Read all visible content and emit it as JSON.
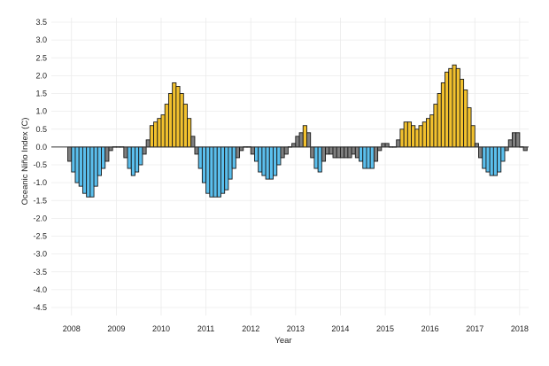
{
  "chart_data": {
    "type": "bar",
    "xlabel": "Year",
    "ylabel": "Oceanic Niño Index (C)",
    "ylim": [
      -4.5,
      3.5
    ],
    "xlim": [
      2007.55,
      2018.2
    ],
    "grid": true,
    "legend": "none",
    "y_ticks": [
      "3.5",
      "3.0",
      "2.5",
      "2.0",
      "1.5",
      "1.0",
      "0.5",
      "0.0",
      "-0.5",
      "-1.0",
      "-1.5",
      "-2.0",
      "-2.5",
      "-3.0",
      "-3.5",
      "-4.0",
      "-4.5"
    ],
    "x_ticks": [
      "2008",
      "2009",
      "2010",
      "2011",
      "2012",
      "2013",
      "2014",
      "2015",
      "2016",
      "2017",
      "2018"
    ],
    "colors": {
      "el_nino": "#f2c12e",
      "la_nina": "#5bbfed",
      "neutral": "#7f7f7f"
    },
    "start_month": "2007-12",
    "values": [
      -0.4,
      -0.7,
      -1.0,
      -1.1,
      -1.3,
      -1.4,
      -1.4,
      -1.1,
      -0.8,
      -0.6,
      -0.4,
      -0.1,
      0.0,
      0.0,
      0.0,
      -0.3,
      -0.6,
      -0.8,
      -0.7,
      -0.5,
      -0.2,
      0.2,
      0.6,
      0.7,
      0.8,
      0.9,
      1.2,
      1.5,
      1.8,
      1.7,
      1.5,
      1.2,
      0.8,
      0.3,
      -0.2,
      -0.6,
      -1.0,
      -1.3,
      -1.4,
      -1.4,
      -1.4,
      -1.3,
      -1.2,
      -0.9,
      -0.6,
      -0.3,
      -0.1,
      0.0,
      0.0,
      -0.2,
      -0.4,
      -0.7,
      -0.8,
      -0.9,
      -0.9,
      -0.8,
      -0.5,
      -0.3,
      -0.2,
      0.0,
      0.1,
      0.3,
      0.4,
      0.6,
      0.4,
      -0.3,
      -0.6,
      -0.7,
      -0.4,
      -0.2,
      -0.2,
      -0.3,
      -0.3,
      -0.3,
      -0.3,
      -0.3,
      -0.2,
      -0.3,
      -0.4,
      -0.6,
      -0.6,
      -0.6,
      -0.4,
      -0.1,
      0.1,
      0.1,
      0.0,
      0.0,
      0.2,
      0.5,
      0.7,
      0.7,
      0.6,
      0.5,
      0.6,
      0.7,
      0.8,
      0.9,
      1.2,
      1.5,
      1.8,
      2.1,
      2.2,
      2.3,
      2.2,
      1.9,
      1.6,
      1.1,
      0.6,
      0.1,
      -0.3,
      -0.6,
      -0.7,
      -0.8,
      -0.8,
      -0.7,
      -0.4,
      -0.1,
      0.2,
      0.4,
      0.4,
      0.0,
      -0.1
    ],
    "categories_enso": [
      "N",
      "L",
      "L",
      "L",
      "L",
      "L",
      "L",
      "L",
      "L",
      "L",
      "N",
      "N",
      "N",
      "N",
      "N",
      "N",
      "L",
      "L",
      "L",
      "L",
      "N",
      "N",
      "E",
      "E",
      "E",
      "E",
      "E",
      "E",
      "E",
      "E",
      "E",
      "E",
      "E",
      "N",
      "N",
      "L",
      "L",
      "L",
      "L",
      "L",
      "L",
      "L",
      "L",
      "L",
      "L",
      "N",
      "N",
      "N",
      "N",
      "N",
      "L",
      "L",
      "L",
      "L",
      "L",
      "L",
      "L",
      "N",
      "N",
      "N",
      "N",
      "N",
      "N",
      "E",
      "N",
      "N",
      "L",
      "L",
      "N",
      "N",
      "N",
      "N",
      "N",
      "N",
      "N",
      "N",
      "N",
      "N",
      "L",
      "L",
      "L",
      "L",
      "N",
      "N",
      "N",
      "N",
      "N",
      "N",
      "N",
      "E",
      "E",
      "E",
      "E",
      "E",
      "E",
      "E",
      "E",
      "E",
      "E",
      "E",
      "E",
      "E",
      "E",
      "E",
      "E",
      "E",
      "E",
      "E",
      "E",
      "N",
      "N",
      "L",
      "L",
      "L",
      "L",
      "L",
      "L",
      "N",
      "N",
      "N",
      "N",
      "N",
      "N"
    ]
  }
}
